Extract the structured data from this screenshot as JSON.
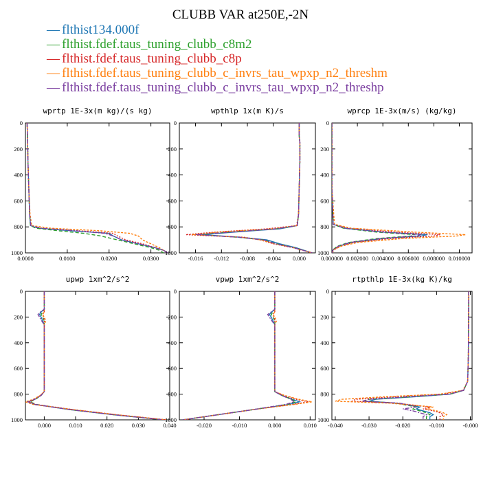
{
  "figure": {
    "title": "CLUBB VAR at250E,-2N",
    "legend": [
      {
        "label": "flthist134.000f",
        "color": "#1f77b4",
        "marker": "—"
      },
      {
        "label": "flthist.fdef.taus_tuning_clubb_c8m2",
        "color": "#2ca02c",
        "marker": "—"
      },
      {
        "label": "flthist.fdef.taus_tuning_clubb_c8p",
        "color": "#d62728",
        "marker": "—"
      },
      {
        "label": "flthist.fdef.taus_tuning_clubb_c_invrs_tau_wpxp_n2_threshm",
        "color": "#ff7f0e",
        "marker": "—"
      },
      {
        "label": "flthist.fdef.taus_tuning_clubb_c_invrs_tau_wpxp_n2_threshp",
        "color": "#7b3fa0",
        "marker": "—"
      }
    ]
  },
  "chart_data": [
    {
      "type": "line",
      "title": "wprtp  1E-3x(m kg)/(s kg)",
      "xlim": [
        0,
        0.0345
      ],
      "ylim": [
        1000,
        0
      ],
      "xticks": [
        0.0,
        0.01,
        0.02,
        0.03
      ],
      "xticklabels": [
        "0.0000",
        "0.0100",
        "0.0200",
        "0.0300"
      ],
      "yticks": [
        0,
        200,
        400,
        600,
        800,
        1000
      ],
      "yticklabels": [
        "0",
        "200",
        "400",
        "600",
        "800",
        "1000"
      ],
      "y": [
        0,
        100,
        300,
        500,
        700,
        790,
        810,
        830,
        850,
        870,
        900,
        930,
        960,
        980,
        1000
      ],
      "series": [
        {
          "x": [
            0.0004,
            0.0005,
            0.0006,
            0.0008,
            0.001,
            0.0012,
            0.003,
            0.011,
            0.02,
            0.021,
            0.023,
            0.027,
            0.031,
            0.033,
            0.034
          ]
        },
        {
          "x": [
            0.0004,
            0.0005,
            0.0006,
            0.0008,
            0.001,
            0.0012,
            0.0025,
            0.008,
            0.014,
            0.018,
            0.022,
            0.026,
            0.03,
            0.032,
            0.033
          ]
        },
        {
          "x": [
            0.0004,
            0.0005,
            0.0006,
            0.0008,
            0.001,
            0.0013,
            0.004,
            0.013,
            0.021,
            0.022,
            0.024,
            0.028,
            0.031,
            0.033,
            0.034
          ]
        },
        {
          "x": [
            0.0004,
            0.0005,
            0.0006,
            0.0008,
            0.0011,
            0.0015,
            0.006,
            0.018,
            0.025,
            0.027,
            0.028,
            0.03,
            0.032,
            0.033,
            0.034
          ]
        },
        {
          "x": [
            0.0004,
            0.0005,
            0.0006,
            0.0008,
            0.001,
            0.0013,
            0.0035,
            0.012,
            0.019,
            0.021,
            0.023,
            0.027,
            0.031,
            0.033,
            0.034
          ]
        }
      ]
    },
    {
      "type": "line",
      "title": "wpthlp  1x(m K)/s",
      "xlim": [
        -0.0185,
        0.0025
      ],
      "ylim": [
        1000,
        0
      ],
      "xticks": [
        -0.016,
        -0.012,
        -0.008,
        -0.004,
        0.0
      ],
      "xticklabels": [
        "-0.016",
        "-0.012",
        "-0.008",
        "-0.004",
        "0.000"
      ],
      "yticks": [
        0,
        200,
        400,
        600,
        800,
        1000
      ],
      "yticklabels": [
        "0",
        "200",
        "400",
        "600",
        "800",
        "1000"
      ],
      "y": [
        0,
        100,
        150,
        300,
        500,
        700,
        790,
        815,
        840,
        860,
        880,
        900,
        930,
        960,
        1000
      ],
      "series": [
        {
          "x": [
            0.0,
            0.0,
            0.0001,
            0.0001,
            0.0,
            -0.0001,
            -0.0003,
            -0.003,
            -0.01,
            -0.015,
            -0.009,
            -0.005,
            -0.003,
            -0.0005,
            0.002
          ]
        },
        {
          "x": [
            0.0,
            0.0,
            0.0001,
            0.0001,
            0.0,
            -0.0001,
            -0.0003,
            -0.0035,
            -0.011,
            -0.0155,
            -0.0095,
            -0.0055,
            -0.0035,
            -0.0008,
            0.002
          ]
        },
        {
          "x": [
            0.0,
            0.0,
            0.0001,
            0.0001,
            0.0,
            -0.0001,
            -0.0004,
            -0.005,
            -0.013,
            -0.0175,
            -0.0085,
            -0.006,
            -0.004,
            -0.001,
            0.002
          ]
        },
        {
          "x": [
            0.0,
            0.0,
            0.0001,
            0.0001,
            0.0,
            -0.0001,
            -0.0003,
            -0.004,
            -0.0125,
            -0.0165,
            -0.0088,
            -0.006,
            -0.0038,
            -0.0009,
            0.002
          ]
        },
        {
          "x": [
            0.0,
            0.0,
            0.0001,
            0.0001,
            0.0,
            -0.0001,
            -0.0003,
            -0.0035,
            -0.0105,
            -0.016,
            -0.0092,
            -0.0055,
            -0.0036,
            -0.0009,
            0.002
          ]
        }
      ]
    },
    {
      "type": "line",
      "title": "wprcp  1E-3x(m/s) (kg/kg)",
      "xlim": [
        0,
        0.011
      ],
      "ylim": [
        1000,
        0
      ],
      "xticks": [
        0.0,
        0.002,
        0.004,
        0.006,
        0.008,
        0.01
      ],
      "xticklabels": [
        "0.000000",
        "0.002000",
        "0.004000",
        "0.006000",
        "0.008000",
        "0.010000"
      ],
      "yticks": [
        0,
        200,
        400,
        600,
        800,
        1000
      ],
      "yticklabels": [
        "0",
        "200",
        "400",
        "600",
        "800",
        "1000"
      ],
      "y": [
        0,
        500,
        780,
        810,
        840,
        860,
        870,
        890,
        920,
        950,
        975,
        1000
      ],
      "series": [
        {
          "x": [
            0.0,
            0.0,
            0.0001,
            0.001,
            0.004,
            0.0075,
            0.007,
            0.004,
            0.0015,
            0.0005,
            0.0001,
            0.0
          ]
        },
        {
          "x": [
            0.0,
            0.0,
            0.0001,
            0.0009,
            0.0035,
            0.0065,
            0.0062,
            0.0035,
            0.0013,
            0.0004,
            0.0001,
            0.0
          ]
        },
        {
          "x": [
            0.0,
            0.0,
            0.0001,
            0.0012,
            0.005,
            0.0085,
            0.008,
            0.0045,
            0.0017,
            0.0006,
            0.0001,
            0.0
          ]
        },
        {
          "x": [
            0.0,
            0.0,
            0.0002,
            0.0015,
            0.0065,
            0.0105,
            0.0098,
            0.0055,
            0.002,
            0.0007,
            0.0002,
            0.0
          ]
        },
        {
          "x": [
            0.0,
            0.0,
            0.0001,
            0.001,
            0.004,
            0.007,
            0.0066,
            0.0038,
            0.0014,
            0.0005,
            0.0001,
            0.0
          ]
        }
      ]
    },
    {
      "type": "line",
      "title": "upwp  1xm^2/s^2",
      "xlim": [
        -0.006,
        0.04
      ],
      "ylim": [
        1000,
        0
      ],
      "xticks": [
        0.0,
        0.01,
        0.02,
        0.03,
        0.04
      ],
      "xticklabels": [
        "0.000",
        "0.010",
        "0.020",
        "0.030",
        "0.040"
      ],
      "yticks": [
        0,
        200,
        400,
        600,
        800,
        1000
      ],
      "yticklabels": [
        "0",
        "200",
        "400",
        "600",
        "800",
        "1000"
      ],
      "y": [
        0,
        140,
        160,
        180,
        200,
        230,
        260,
        300,
        500,
        780,
        810,
        840,
        860,
        880,
        920,
        960,
        1000
      ],
      "series": [
        {
          "x": [
            0.0,
            0.0,
            -0.001,
            -0.0015,
            -0.001,
            -0.0005,
            0.0,
            0.0,
            0.0,
            0.0,
            -0.001,
            -0.003,
            -0.005,
            -0.003,
            0.008,
            0.022,
            0.038
          ]
        },
        {
          "x": [
            0.0,
            0.0,
            -0.0005,
            -0.001,
            -0.0005,
            0.0,
            0.0,
            0.0,
            0.0,
            0.0,
            -0.001,
            -0.0028,
            -0.0045,
            -0.0025,
            0.008,
            0.022,
            0.038
          ]
        },
        {
          "x": [
            0.0,
            0.0,
            0.0,
            -0.0005,
            -0.0002,
            0.0,
            0.0,
            0.0,
            0.0,
            0.0,
            -0.0012,
            -0.0032,
            -0.0048,
            -0.0028,
            0.009,
            0.023,
            0.039
          ]
        },
        {
          "x": [
            0.0,
            0.0,
            0.0,
            -0.0005,
            0.0,
            0.0005,
            0.0,
            0.0,
            0.0,
            0.0,
            -0.0013,
            -0.0035,
            -0.006,
            -0.0035,
            0.009,
            0.023,
            0.039
          ]
        },
        {
          "x": [
            0.0,
            0.0,
            -0.0012,
            -0.002,
            -0.0015,
            -0.0008,
            0.0,
            0.0,
            0.0,
            0.0,
            -0.001,
            -0.003,
            -0.0052,
            -0.003,
            0.008,
            0.022,
            0.038
          ]
        }
      ]
    },
    {
      "type": "line",
      "title": "vpwp  1xm^2/s^2",
      "xlim": [
        -0.027,
        0.0115
      ],
      "ylim": [
        1000,
        0
      ],
      "xticks": [
        -0.02,
        -0.01,
        0.0,
        0.01
      ],
      "xticklabels": [
        "-0.020",
        "-0.010",
        "0.000",
        "0.010"
      ],
      "yticks": [
        0,
        200,
        400,
        600,
        800,
        1000
      ],
      "yticklabels": [
        "0",
        "200",
        "400",
        "600",
        "800",
        "1000"
      ],
      "y": [
        0,
        140,
        160,
        180,
        200,
        230,
        260,
        300,
        500,
        780,
        810,
        840,
        860,
        880,
        920,
        960,
        1000
      ],
      "series": [
        {
          "x": [
            0.0,
            0.0,
            -0.0008,
            -0.0015,
            -0.001,
            -0.0005,
            0.0,
            0.0,
            0.0,
            0.0,
            0.002,
            0.005,
            0.007,
            0.004,
            -0.006,
            -0.016,
            -0.026
          ]
        },
        {
          "x": [
            0.0,
            0.0,
            -0.0005,
            -0.001,
            -0.0005,
            0.0,
            0.0,
            0.0,
            0.0,
            0.0,
            0.002,
            0.0048,
            0.006,
            0.0035,
            -0.006,
            -0.016,
            -0.026
          ]
        },
        {
          "x": [
            0.0,
            0.0,
            0.0,
            -0.0005,
            -0.0002,
            0.0,
            0.0,
            0.0,
            0.0,
            0.0,
            0.0025,
            0.006,
            0.0095,
            0.005,
            -0.006,
            -0.016,
            -0.026
          ]
        },
        {
          "x": [
            0.0,
            0.0,
            0.0,
            -0.0005,
            0.0,
            0.0005,
            0.0,
            0.0,
            0.0,
            0.0,
            0.0028,
            0.0068,
            0.0105,
            0.0055,
            -0.006,
            -0.016,
            -0.026
          ]
        },
        {
          "x": [
            0.0,
            0.0,
            -0.001,
            -0.002,
            -0.0015,
            -0.0008,
            0.0,
            0.0,
            0.0,
            0.0,
            0.002,
            0.0045,
            0.0055,
            0.003,
            -0.006,
            -0.016,
            -0.026
          ]
        }
      ]
    },
    {
      "type": "line",
      "title": "rtpthlp  1E-3x(kg K)/kg",
      "xlim": [
        -0.041,
        0.0005
      ],
      "ylim": [
        1000,
        0
      ],
      "xticks": [
        -0.04,
        -0.03,
        -0.02,
        -0.01,
        0.0
      ],
      "xticklabels": [
        "-0.040",
        "-0.030",
        "-0.020",
        "-0.010",
        "-0.000"
      ],
      "yticks": [
        0,
        200,
        400,
        600,
        800,
        1000
      ],
      "yticklabels": [
        "0",
        "200",
        "400",
        "600",
        "800",
        "1000"
      ],
      "y": [
        0,
        100,
        500,
        700,
        770,
        800,
        820,
        840,
        855,
        870,
        885,
        900,
        915,
        930,
        945,
        960,
        975,
        1000
      ],
      "series": [
        {
          "x": [
            -0.0005,
            -0.0005,
            -0.0006,
            -0.0008,
            -0.002,
            -0.006,
            -0.016,
            -0.028,
            -0.03,
            -0.022,
            -0.018,
            -0.015,
            -0.016,
            -0.014,
            -0.012,
            -0.011,
            -0.012,
            -0.012
          ]
        },
        {
          "x": [
            -0.0005,
            -0.0005,
            -0.0006,
            -0.0008,
            -0.002,
            -0.006,
            -0.017,
            -0.03,
            -0.031,
            -0.022,
            -0.019,
            -0.016,
            -0.017,
            -0.015,
            -0.013,
            -0.012,
            -0.013,
            -0.013
          ]
        },
        {
          "x": [
            -0.0005,
            -0.0005,
            -0.0006,
            -0.0008,
            -0.002,
            -0.008,
            -0.022,
            -0.034,
            -0.035,
            -0.022,
            -0.017,
            -0.012,
            -0.014,
            -0.011,
            -0.009,
            -0.008,
            -0.009,
            -0.009
          ]
        },
        {
          "x": [
            -0.0005,
            -0.0005,
            -0.0006,
            -0.0008,
            -0.0022,
            -0.009,
            -0.025,
            -0.038,
            -0.04,
            -0.024,
            -0.017,
            -0.011,
            -0.013,
            -0.01,
            -0.008,
            -0.007,
            -0.008,
            -0.008
          ]
        },
        {
          "x": [
            -0.0005,
            -0.0005,
            -0.0006,
            -0.0008,
            -0.002,
            -0.006,
            -0.018,
            -0.03,
            -0.032,
            -0.021,
            -0.018,
            -0.016,
            -0.02,
            -0.017,
            -0.015,
            -0.013,
            -0.014,
            -0.014
          ]
        }
      ]
    }
  ]
}
